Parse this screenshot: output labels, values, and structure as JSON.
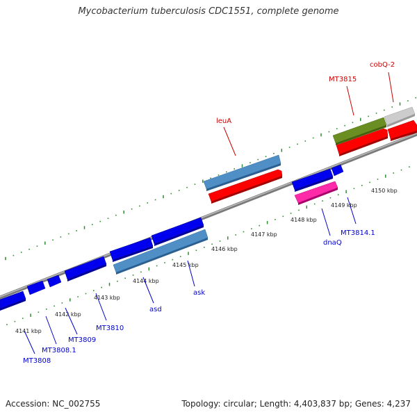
{
  "title": "Mycobacterium tuberculosis CDC1551, complete genome",
  "footer": {
    "accession": "Accession: NC_002755",
    "summary": "Topology: circular; Length: 4,403,837 bp; Genes: 4,237"
  },
  "colors": {
    "backbone": "#8c8c8c",
    "tick": "#2e8b2e",
    "forward_label": "#cc0000",
    "reverse_label": "#0000cc"
  },
  "axis": {
    "tick_labels": [
      "4141 kbp",
      "4142 kbp",
      "4143 kbp",
      "4144 kbp",
      "4145 kbp",
      "4146 kbp",
      "4147 kbp",
      "4148 kbp",
      "4149 kbp",
      "4150 kbp"
    ]
  },
  "genes": [
    {
      "label": "cobQ-2",
      "strand": "forward"
    },
    {
      "label": "MT3815",
      "strand": "forward"
    },
    {
      "label": "leuA",
      "strand": "forward"
    },
    {
      "label": "MT3814.1",
      "strand": "reverse"
    },
    {
      "label": "dnaQ",
      "strand": "reverse"
    },
    {
      "label": "ask",
      "strand": "reverse"
    },
    {
      "label": "asd",
      "strand": "reverse"
    },
    {
      "label": "MT3810",
      "strand": "reverse"
    },
    {
      "label": "MT3809",
      "strand": "reverse"
    },
    {
      "label": "MT3808.1",
      "strand": "reverse"
    },
    {
      "label": "MT3808",
      "strand": "reverse"
    }
  ]
}
